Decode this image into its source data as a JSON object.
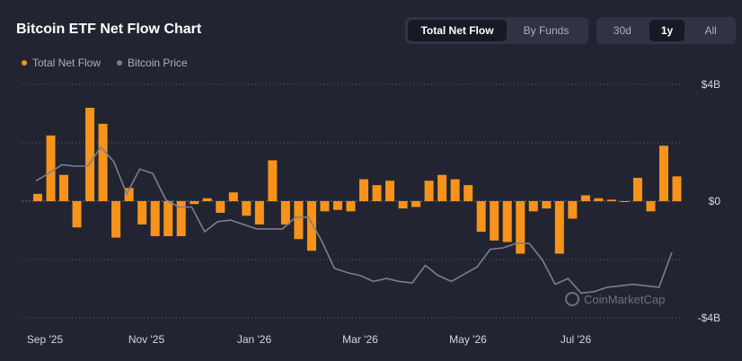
{
  "header": {
    "title": "Bitcoin ETF Net Flow Chart",
    "flow_tabs": [
      {
        "label": "Total Net Flow",
        "active": true
      },
      {
        "label": "By Funds",
        "active": false
      }
    ],
    "range_tabs": [
      {
        "label": "30d",
        "active": false
      },
      {
        "label": "1y",
        "active": true
      },
      {
        "label": "All",
        "active": false
      }
    ]
  },
  "colors": {
    "background": "#222531",
    "flow": "#f7931a",
    "price": "#7a7f8e",
    "grid": "#5a6072",
    "tick_text": "#cfd6e4"
  },
  "watermark": {
    "text": "CoinMarketCap"
  },
  "chart_data": {
    "type": "bar",
    "title": "Bitcoin ETF Net Flow Chart",
    "xlabel": "",
    "ylabel": "",
    "ylim": [
      -4,
      4
    ],
    "y_ticks": [
      "$4B",
      "$0",
      "-$4B"
    ],
    "x_ticks": [
      "Sep '25",
      "Nov '25",
      "Jan '26",
      "Mar '26",
      "May '26",
      "Jul '26"
    ],
    "grid": true,
    "legend_position": "top-left",
    "series": [
      {
        "name": "Total Net Flow",
        "kind": "bar",
        "values": [
          0.25,
          2.25,
          0.9,
          -0.9,
          3.2,
          2.65,
          -1.25,
          0.45,
          -0.8,
          -1.2,
          -1.2,
          -1.2,
          -0.1,
          0.1,
          -0.4,
          0.3,
          -0.5,
          -0.8,
          1.4,
          -0.8,
          -1.3,
          -1.7,
          -0.35,
          -0.3,
          -0.35,
          0.75,
          0.55,
          0.7,
          -0.25,
          -0.2,
          0.7,
          0.9,
          0.75,
          0.55,
          -1.05,
          -1.35,
          -1.4,
          -1.8,
          -0.35,
          -0.25,
          -1.8,
          -0.6,
          0.2,
          0.1,
          0.05,
          0.0,
          0.8,
          -0.35,
          1.9,
          0.85
        ]
      },
      {
        "name": "Bitcoin Price",
        "kind": "line",
        "values": [
          0.7,
          0.95,
          1.25,
          1.2,
          1.2,
          1.85,
          1.35,
          0.25,
          1.1,
          0.95,
          0.05,
          -0.2,
          -0.2,
          -1.05,
          -0.7,
          -0.65,
          -0.8,
          -0.95,
          -0.95,
          -0.95,
          -0.55,
          -0.55,
          -1.35,
          -2.3,
          -2.45,
          -2.55,
          -2.75,
          -2.65,
          -2.75,
          -2.8,
          -2.2,
          -2.55,
          -2.75,
          -2.5,
          -2.25,
          -1.65,
          -1.6,
          -1.45,
          -1.45,
          -2.0,
          -2.85,
          -2.65,
          -3.15,
          -3.1,
          -2.95,
          -2.9,
          -2.85,
          -2.9,
          -2.95,
          -1.75
        ]
      }
    ]
  }
}
